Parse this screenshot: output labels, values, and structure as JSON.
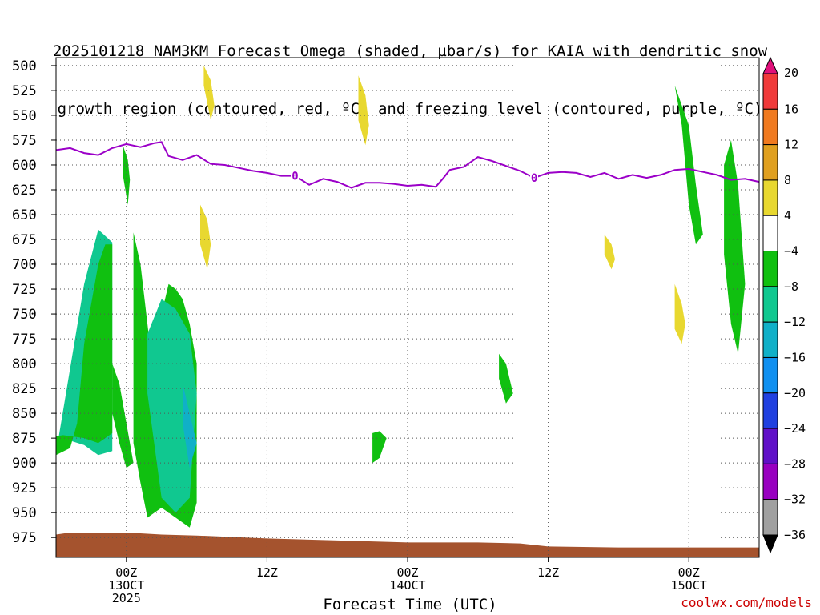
{
  "title": {
    "line1": "2025101218 NAM3KM Forecast Omega (shaded, µbar/s) for KAIA with dendritic snow",
    "line2": "growth region (contoured, red, ºC) and freezing level (contoured, purple, ºC)"
  },
  "credit": "coolwx.com/models",
  "colors": {
    "ground": "#a5532e",
    "freezing_line": "#9b00c8",
    "grid": "#555555"
  },
  "chart_data": {
    "type": "heatmap",
    "xlabel": "Forecast Time (UTC)",
    "x_range_hours_from_13oct_00z": [
      -10,
      90
    ],
    "x_ticks": [
      {
        "hour": 0,
        "lines": [
          "00Z",
          "13OCT",
          "2025"
        ]
      },
      {
        "hour": 20,
        "lines": [
          "12Z"
        ]
      },
      {
        "hour": 40,
        "lines": [
          "00Z",
          "14OCT"
        ]
      },
      {
        "hour": 60,
        "lines": [
          "12Z"
        ]
      },
      {
        "hour": 80,
        "lines": [
          "00Z",
          "15OCT"
        ]
      }
    ],
    "y_axis": {
      "unit": "hPa",
      "range": [
        995,
        492
      ],
      "ticks": [
        500,
        525,
        550,
        575,
        600,
        625,
        650,
        675,
        700,
        725,
        750,
        775,
        800,
        825,
        850,
        875,
        900,
        925,
        950,
        975
      ]
    },
    "grid": true,
    "colorbar": {
      "levels": [
        20,
        16,
        12,
        8,
        4,
        -4,
        -8,
        -12,
        -16,
        -20,
        -24,
        -28,
        -32,
        -36
      ],
      "colors": [
        "#e0107a",
        "#f03a3a",
        "#f07a20",
        "#e0a020",
        "#e8d830",
        "#ffffff",
        "#10c010",
        "#10c890",
        "#10b0c8",
        "#1090f0",
        "#2040e0",
        "#6010c8",
        "#9800c0",
        "#a0a0a0",
        "#000000"
      ]
    },
    "freezing_level": {
      "label": "0",
      "hours": [
        -10,
        -8,
        -6,
        -4,
        -2,
        0,
        2,
        4,
        5,
        6,
        8,
        10,
        12,
        14,
        16,
        18,
        20,
        22,
        24,
        26,
        28,
        30,
        32,
        34,
        36,
        38,
        40,
        42,
        44,
        45,
        46,
        48,
        50,
        52,
        54,
        56,
        58,
        60,
        62,
        64,
        66,
        68,
        70,
        72,
        74,
        76,
        78,
        80,
        82,
        84,
        86,
        88,
        90
      ],
      "pressure": [
        585,
        583,
        588,
        590,
        583,
        579,
        582,
        578,
        577,
        591,
        595,
        590,
        599,
        600,
        603,
        606,
        608,
        611,
        611,
        620,
        614,
        617,
        623,
        618,
        618,
        619,
        621,
        620,
        622,
        614,
        605,
        602,
        592,
        596,
        601,
        606,
        613,
        608,
        607,
        608,
        612,
        608,
        614,
        610,
        613,
        610,
        605,
        604,
        607,
        610,
        615,
        614,
        617
      ]
    },
    "ground_pressure": {
      "hours": [
        -10,
        -8,
        0,
        5,
        10,
        20,
        30,
        40,
        50,
        56,
        60,
        70,
        80,
        90
      ],
      "pressure": [
        972,
        970,
        970,
        972,
        973,
        976,
        978,
        980,
        980,
        981,
        984,
        985,
        985,
        985
      ]
    },
    "omega_regions": [
      {
        "level": -8,
        "hours": [
          -10,
          -6,
          -4,
          -2,
          -2,
          -4,
          -6,
          -10
        ],
        "pressure": [
          873,
          882,
          892,
          888,
          678,
          665,
          720,
          890
        ]
      },
      {
        "level": -4,
        "hours": [
          -10,
          -9,
          -6,
          -4,
          -2,
          -2,
          -3,
          -4,
          -6,
          -7,
          -8,
          -10
        ],
        "pressure": [
          873,
          872,
          875,
          880,
          870,
          680,
          680,
          700,
          780,
          860,
          885,
          892
        ]
      },
      {
        "level": -4,
        "hours": [
          -2,
          -1,
          0,
          1,
          0,
          -1,
          -2
        ],
        "pressure": [
          800,
          820,
          860,
          900,
          905,
          880,
          850
        ]
      },
      {
        "level": -4,
        "hours": [
          1,
          2,
          3,
          4,
          5,
          6,
          7,
          8,
          9,
          10,
          10,
          9,
          7,
          5,
          3,
          2,
          1
        ],
        "pressure": [
          668,
          700,
          760,
          820,
          750,
          720,
          725,
          735,
          760,
          800,
          940,
          965,
          955,
          945,
          955,
          920,
          880
        ]
      },
      {
        "level": -8,
        "hours": [
          3,
          5,
          7,
          9,
          10,
          9,
          7,
          5,
          3
        ],
        "pressure": [
          770,
          735,
          745,
          770,
          830,
          935,
          950,
          935,
          830
        ]
      },
      {
        "level": -12,
        "hours": [
          8,
          9,
          10,
          9,
          8
        ],
        "pressure": [
          820,
          850,
          880,
          905,
          860
        ]
      },
      {
        "level": -4,
        "hours": [
          -0.5,
          0.2,
          0.5,
          0.2,
          -0.5
        ],
        "pressure": [
          580,
          595,
          615,
          640,
          610
        ]
      },
      {
        "level": -4,
        "hours": [
          76,
          78,
          79,
          80,
          81,
          82,
          81,
          80,
          78,
          76
        ],
        "pressure": [
          500,
          520,
          560,
          640,
          680,
          670,
          620,
          560,
          520,
          500
        ]
      },
      {
        "level": -4,
        "hours": [
          85,
          86,
          87,
          88,
          87,
          86,
          85
        ],
        "pressure": [
          600,
          575,
          620,
          720,
          790,
          760,
          690
        ]
      },
      {
        "level": -4,
        "hours": [
          53,
          54,
          55,
          54,
          53
        ],
        "pressure": [
          790,
          800,
          830,
          840,
          815
        ]
      },
      {
        "level": -4,
        "hours": [
          35,
          36,
          37,
          36,
          35
        ],
        "pressure": [
          870,
          868,
          875,
          895,
          900
        ]
      },
      {
        "level": 4,
        "hours": [
          11,
          12,
          12.5,
          12,
          11
        ],
        "pressure": [
          500,
          515,
          540,
          555,
          520
        ]
      },
      {
        "level": 4,
        "hours": [
          10.5,
          11.5,
          12,
          11.5,
          10.5
        ],
        "pressure": [
          640,
          655,
          680,
          705,
          680
        ]
      },
      {
        "level": 4,
        "hours": [
          33,
          34,
          34.5,
          34,
          33
        ],
        "pressure": [
          510,
          530,
          560,
          580,
          555
        ]
      },
      {
        "level": 4,
        "hours": [
          68,
          69,
          69.5,
          69,
          68
        ],
        "pressure": [
          670,
          680,
          695,
          705,
          690
        ]
      },
      {
        "level": 4,
        "hours": [
          78,
          79,
          79.5,
          79,
          78
        ],
        "pressure": [
          720,
          740,
          760,
          780,
          765
        ]
      }
    ]
  }
}
